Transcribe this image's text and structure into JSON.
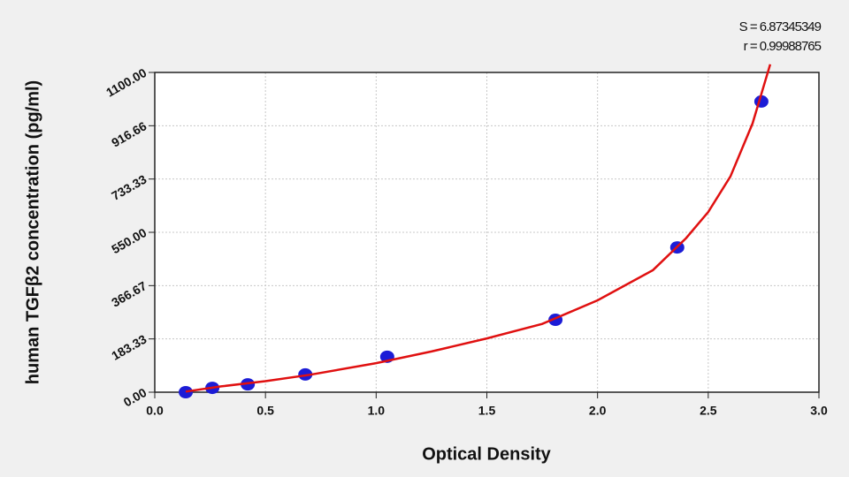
{
  "chart_data": {
    "type": "scatter",
    "xlabel": "Optical Density",
    "ylabel": "human TGFβ2 concentration (pg/ml)",
    "annotations": [
      "S = 6.87345349",
      "r = 0.99988765"
    ],
    "xlim": [
      0,
      3
    ],
    "ylim": [
      0,
      1100
    ],
    "xticks": [
      {
        "value": 0,
        "label": "0.0"
      },
      0.5,
      {
        "value": 1,
        "label": "1.0"
      },
      1.5,
      {
        "value": 2,
        "label": "2.0"
      },
      2.5,
      {
        "value": 3,
        "label": "3.0"
      }
    ],
    "yticks": [
      {
        "value": 0,
        "label": "0.00"
      },
      183.33,
      366.67,
      {
        "value": 550,
        "label": "550.00"
      },
      733.33,
      916.66,
      {
        "value": 1100,
        "label": "1100.00"
      }
    ],
    "grid": true,
    "series": [
      {
        "kind": "points",
        "color": "#1c1cd6",
        "x": [
          0.14,
          0.26,
          0.42,
          0.68,
          1.05,
          1.81,
          2.36,
          2.74
        ],
        "y": [
          0,
          15,
          27,
          61,
          122,
          249,
          498,
          1000
        ]
      },
      {
        "kind": "line",
        "color": "#e01010",
        "x": [
          0.14,
          0.3,
          0.5,
          0.7,
          1.0,
          1.25,
          1.5,
          1.75,
          2.0,
          2.25,
          2.4,
          2.5,
          2.6,
          2.7,
          2.78
        ],
        "y": [
          2,
          20,
          38,
          60,
          100,
          140,
          185,
          235,
          316,
          420,
          530,
          620,
          742,
          924,
          1128
        ]
      }
    ]
  }
}
